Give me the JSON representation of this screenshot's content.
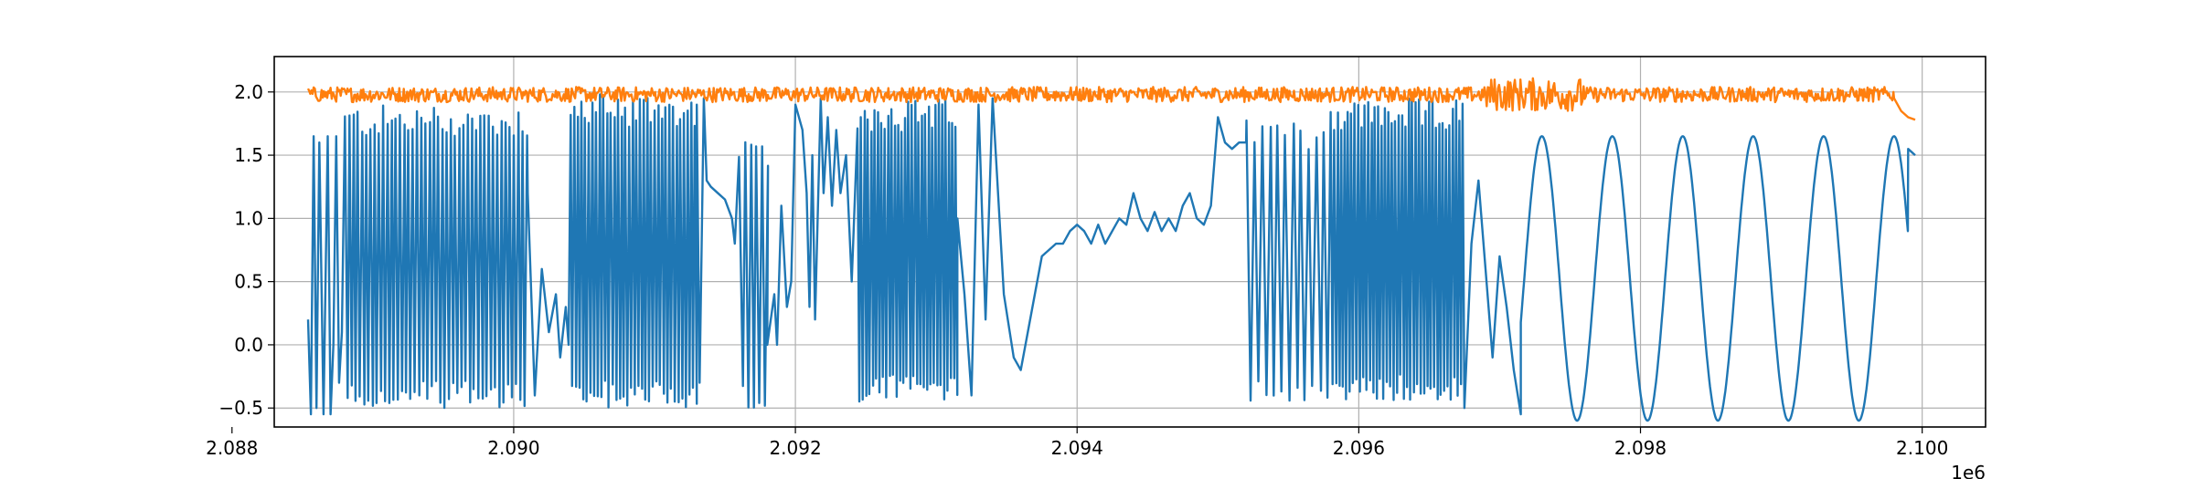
{
  "chart_data": {
    "type": "line",
    "title": "",
    "xlabel": "",
    "ylabel": "",
    "x_offset_label": "1e6",
    "xlim": [
      2088300,
      2100450
    ],
    "ylim": [
      -0.65,
      2.28
    ],
    "grid": true,
    "legend": null,
    "x_ticks": [
      2088000,
      2090000,
      2092000,
      2094000,
      2096000,
      2098000,
      2100000
    ],
    "x_tick_labels": [
      "2.088",
      "2.090",
      "2.092",
      "2.094",
      "2.096",
      "2.098",
      "2.100"
    ],
    "y_ticks": [
      -0.5,
      0.0,
      0.5,
      1.0,
      1.5,
      2.0
    ],
    "y_tick_labels": [
      "−0.5",
      "0.0",
      "0.5",
      "1.0",
      "1.5",
      "2.0"
    ],
    "series": [
      {
        "color": "#1f77b4",
        "segments": [
          {
            "kind": "points",
            "points": [
              [
                2088540,
                0.2
              ],
              [
                2088560,
                -0.55
              ],
              [
                2088580,
                1.65
              ],
              [
                2088600,
                -0.5
              ],
              [
                2088620,
                1.6
              ],
              [
                2088650,
                -0.55
              ],
              [
                2088680,
                1.65
              ],
              [
                2088700,
                -0.55
              ],
              [
                2088720,
                0.0
              ],
              [
                2088740,
                1.65
              ],
              [
                2088760,
                -0.3
              ],
              [
                2088780,
                0.1
              ]
            ]
          },
          {
            "kind": "osc",
            "start": 2088800,
            "end": 2090100,
            "lo": -0.5,
            "hi": 1.9,
            "period": 30
          },
          {
            "kind": "points",
            "points": [
              [
                2090100,
                1.2
              ],
              [
                2090150,
                -0.4
              ],
              [
                2090200,
                0.6
              ],
              [
                2090250,
                0.1
              ],
              [
                2090300,
                0.4
              ],
              [
                2090330,
                -0.1
              ],
              [
                2090370,
                0.3
              ],
              [
                2090390,
                0.0
              ]
            ]
          },
          {
            "kind": "osc",
            "start": 2090400,
            "end": 2091300,
            "lo": -0.5,
            "hi": 2.0,
            "period": 26
          },
          {
            "kind": "points",
            "points": [
              [
                2091300,
                1.9
              ],
              [
                2091320,
                -0.3
              ],
              [
                2091350,
                1.95
              ],
              [
                2091370,
                1.3
              ],
              [
                2091400,
                1.25
              ],
              [
                2091450,
                1.2
              ],
              [
                2091500,
                1.15
              ],
              [
                2091550,
                1.0
              ],
              [
                2091570,
                0.8
              ]
            ]
          },
          {
            "kind": "osc",
            "start": 2091600,
            "end": 2091800,
            "lo": -0.5,
            "hi": 1.65,
            "period": 40
          },
          {
            "kind": "points",
            "points": [
              [
                2091800,
                0.0
              ],
              [
                2091850,
                0.4
              ],
              [
                2091870,
                0.0
              ],
              [
                2091900,
                1.1
              ],
              [
                2091940,
                0.3
              ],
              [
                2091970,
                0.5
              ],
              [
                2092000,
                1.9
              ],
              [
                2092050,
                1.7
              ],
              [
                2092080,
                1.2
              ],
              [
                2092100,
                0.3
              ],
              [
                2092120,
                1.5
              ],
              [
                2092140,
                0.2
              ],
              [
                2092180,
                1.95
              ],
              [
                2092200,
                1.2
              ],
              [
                2092230,
                1.8
              ],
              [
                2092260,
                1.1
              ],
              [
                2092290,
                1.7
              ],
              [
                2092320,
                1.2
              ],
              [
                2092360,
                1.5
              ],
              [
                2092400,
                0.5
              ]
            ]
          },
          {
            "kind": "osc",
            "start": 2092440,
            "end": 2093150,
            "lo": -0.45,
            "hi": 1.95,
            "period": 24
          },
          {
            "kind": "points",
            "points": [
              [
                2093150,
                1.0
              ],
              [
                2093200,
                0.4
              ],
              [
                2093250,
                -0.4
              ],
              [
                2093300,
                1.9
              ],
              [
                2093350,
                0.2
              ],
              [
                2093400,
                1.95
              ],
              [
                2093480,
                0.4
              ],
              [
                2093550,
                -0.1
              ],
              [
                2093600,
                -0.2
              ],
              [
                2093650,
                0.1
              ],
              [
                2093700,
                0.4
              ],
              [
                2093750,
                0.7
              ],
              [
                2093800,
                0.75
              ],
              [
                2093850,
                0.8
              ],
              [
                2093900,
                0.8
              ],
              [
                2093950,
                0.9
              ],
              [
                2094000,
                0.95
              ],
              [
                2094050,
                0.9
              ],
              [
                2094100,
                0.8
              ],
              [
                2094150,
                0.95
              ],
              [
                2094200,
                0.8
              ],
              [
                2094250,
                0.9
              ],
              [
                2094300,
                1.0
              ],
              [
                2094350,
                0.95
              ],
              [
                2094400,
                1.2
              ],
              [
                2094450,
                1.0
              ],
              [
                2094500,
                0.9
              ],
              [
                2094550,
                1.05
              ],
              [
                2094600,
                0.9
              ],
              [
                2094650,
                1.0
              ],
              [
                2094700,
                0.9
              ],
              [
                2094750,
                1.1
              ],
              [
                2094800,
                1.2
              ],
              [
                2094850,
                1.0
              ],
              [
                2094900,
                0.95
              ],
              [
                2094950,
                1.1
              ],
              [
                2095000,
                1.8
              ],
              [
                2095050,
                1.6
              ],
              [
                2095100,
                1.55
              ],
              [
                2095150,
                1.6
              ],
              [
                2095200,
                1.6
              ]
            ]
          },
          {
            "kind": "osc",
            "start": 2095200,
            "end": 2095800,
            "lo": -0.45,
            "hi": 1.8,
            "period": 55
          },
          {
            "kind": "osc",
            "start": 2095800,
            "end": 2096750,
            "lo": -0.45,
            "hi": 1.95,
            "period": 24
          },
          {
            "kind": "points",
            "points": [
              [
                2096750,
                -0.5
              ],
              [
                2096800,
                0.8
              ],
              [
                2096850,
                1.3
              ],
              [
                2096900,
                0.6
              ],
              [
                2096950,
                -0.1
              ],
              [
                2097000,
                0.7
              ],
              [
                2097050,
                0.3
              ],
              [
                2097100,
                -0.2
              ],
              [
                2097150,
                -0.55
              ]
            ]
          },
          {
            "kind": "sine",
            "start": 2097150,
            "end": 2099900,
            "lo": -0.6,
            "hi": 1.65,
            "period": 500,
            "phase": 2097300
          },
          {
            "kind": "points",
            "points": [
              [
                2099900,
                1.55
              ],
              [
                2099950,
                1.5
              ]
            ]
          }
        ]
      },
      {
        "color": "#ff7f0e",
        "segments": [
          {
            "kind": "noise",
            "start": 2088540,
            "end": 2099800,
            "center": 1.98,
            "amp": 0.06,
            "step": 8
          },
          {
            "kind": "points",
            "points": [
              [
                2099800,
                1.95
              ],
              [
                2099850,
                1.85
              ],
              [
                2099900,
                1.8
              ],
              [
                2099950,
                1.78
              ]
            ]
          }
        ]
      }
    ]
  }
}
